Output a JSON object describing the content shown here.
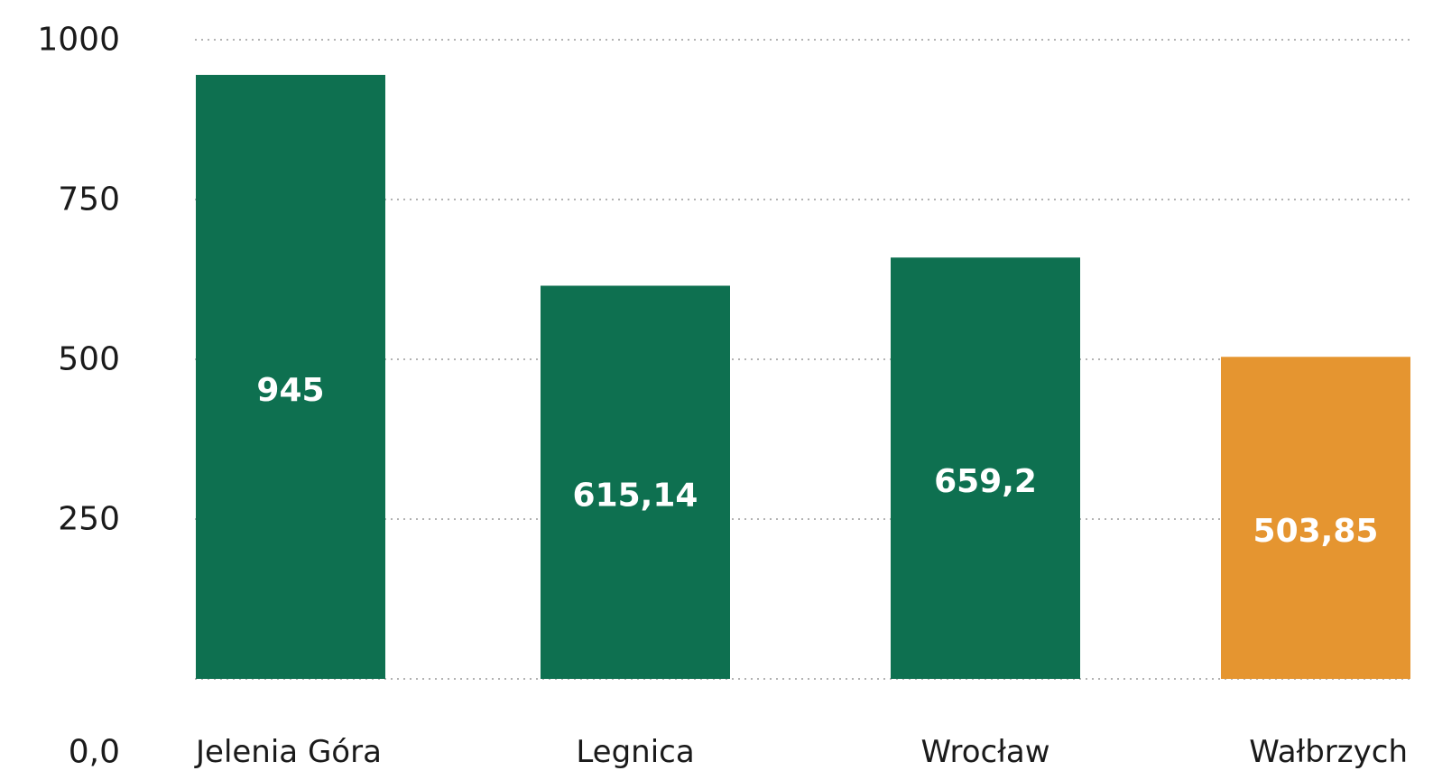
{
  "chart_data": {
    "type": "bar",
    "categories": [
      "Jelenia Góra",
      "Legnica",
      "Wrocław",
      "Wałbrzych"
    ],
    "values": [
      945,
      615.14,
      659.2,
      503.85
    ],
    "value_labels": [
      "945",
      "615,14",
      "659,2",
      "503,85"
    ],
    "bar_colors": [
      "#0e7050",
      "#0e7050",
      "#0e7050",
      "#e59530"
    ],
    "title": "",
    "xlabel": "",
    "ylabel": "",
    "ylim": [
      0,
      1000
    ],
    "yticks": [
      1000,
      750,
      500,
      250,
      0
    ],
    "ytick_labels": [
      "1000",
      "750",
      "500",
      "250",
      "0,0"
    ],
    "grid": true,
    "legend": "none"
  }
}
